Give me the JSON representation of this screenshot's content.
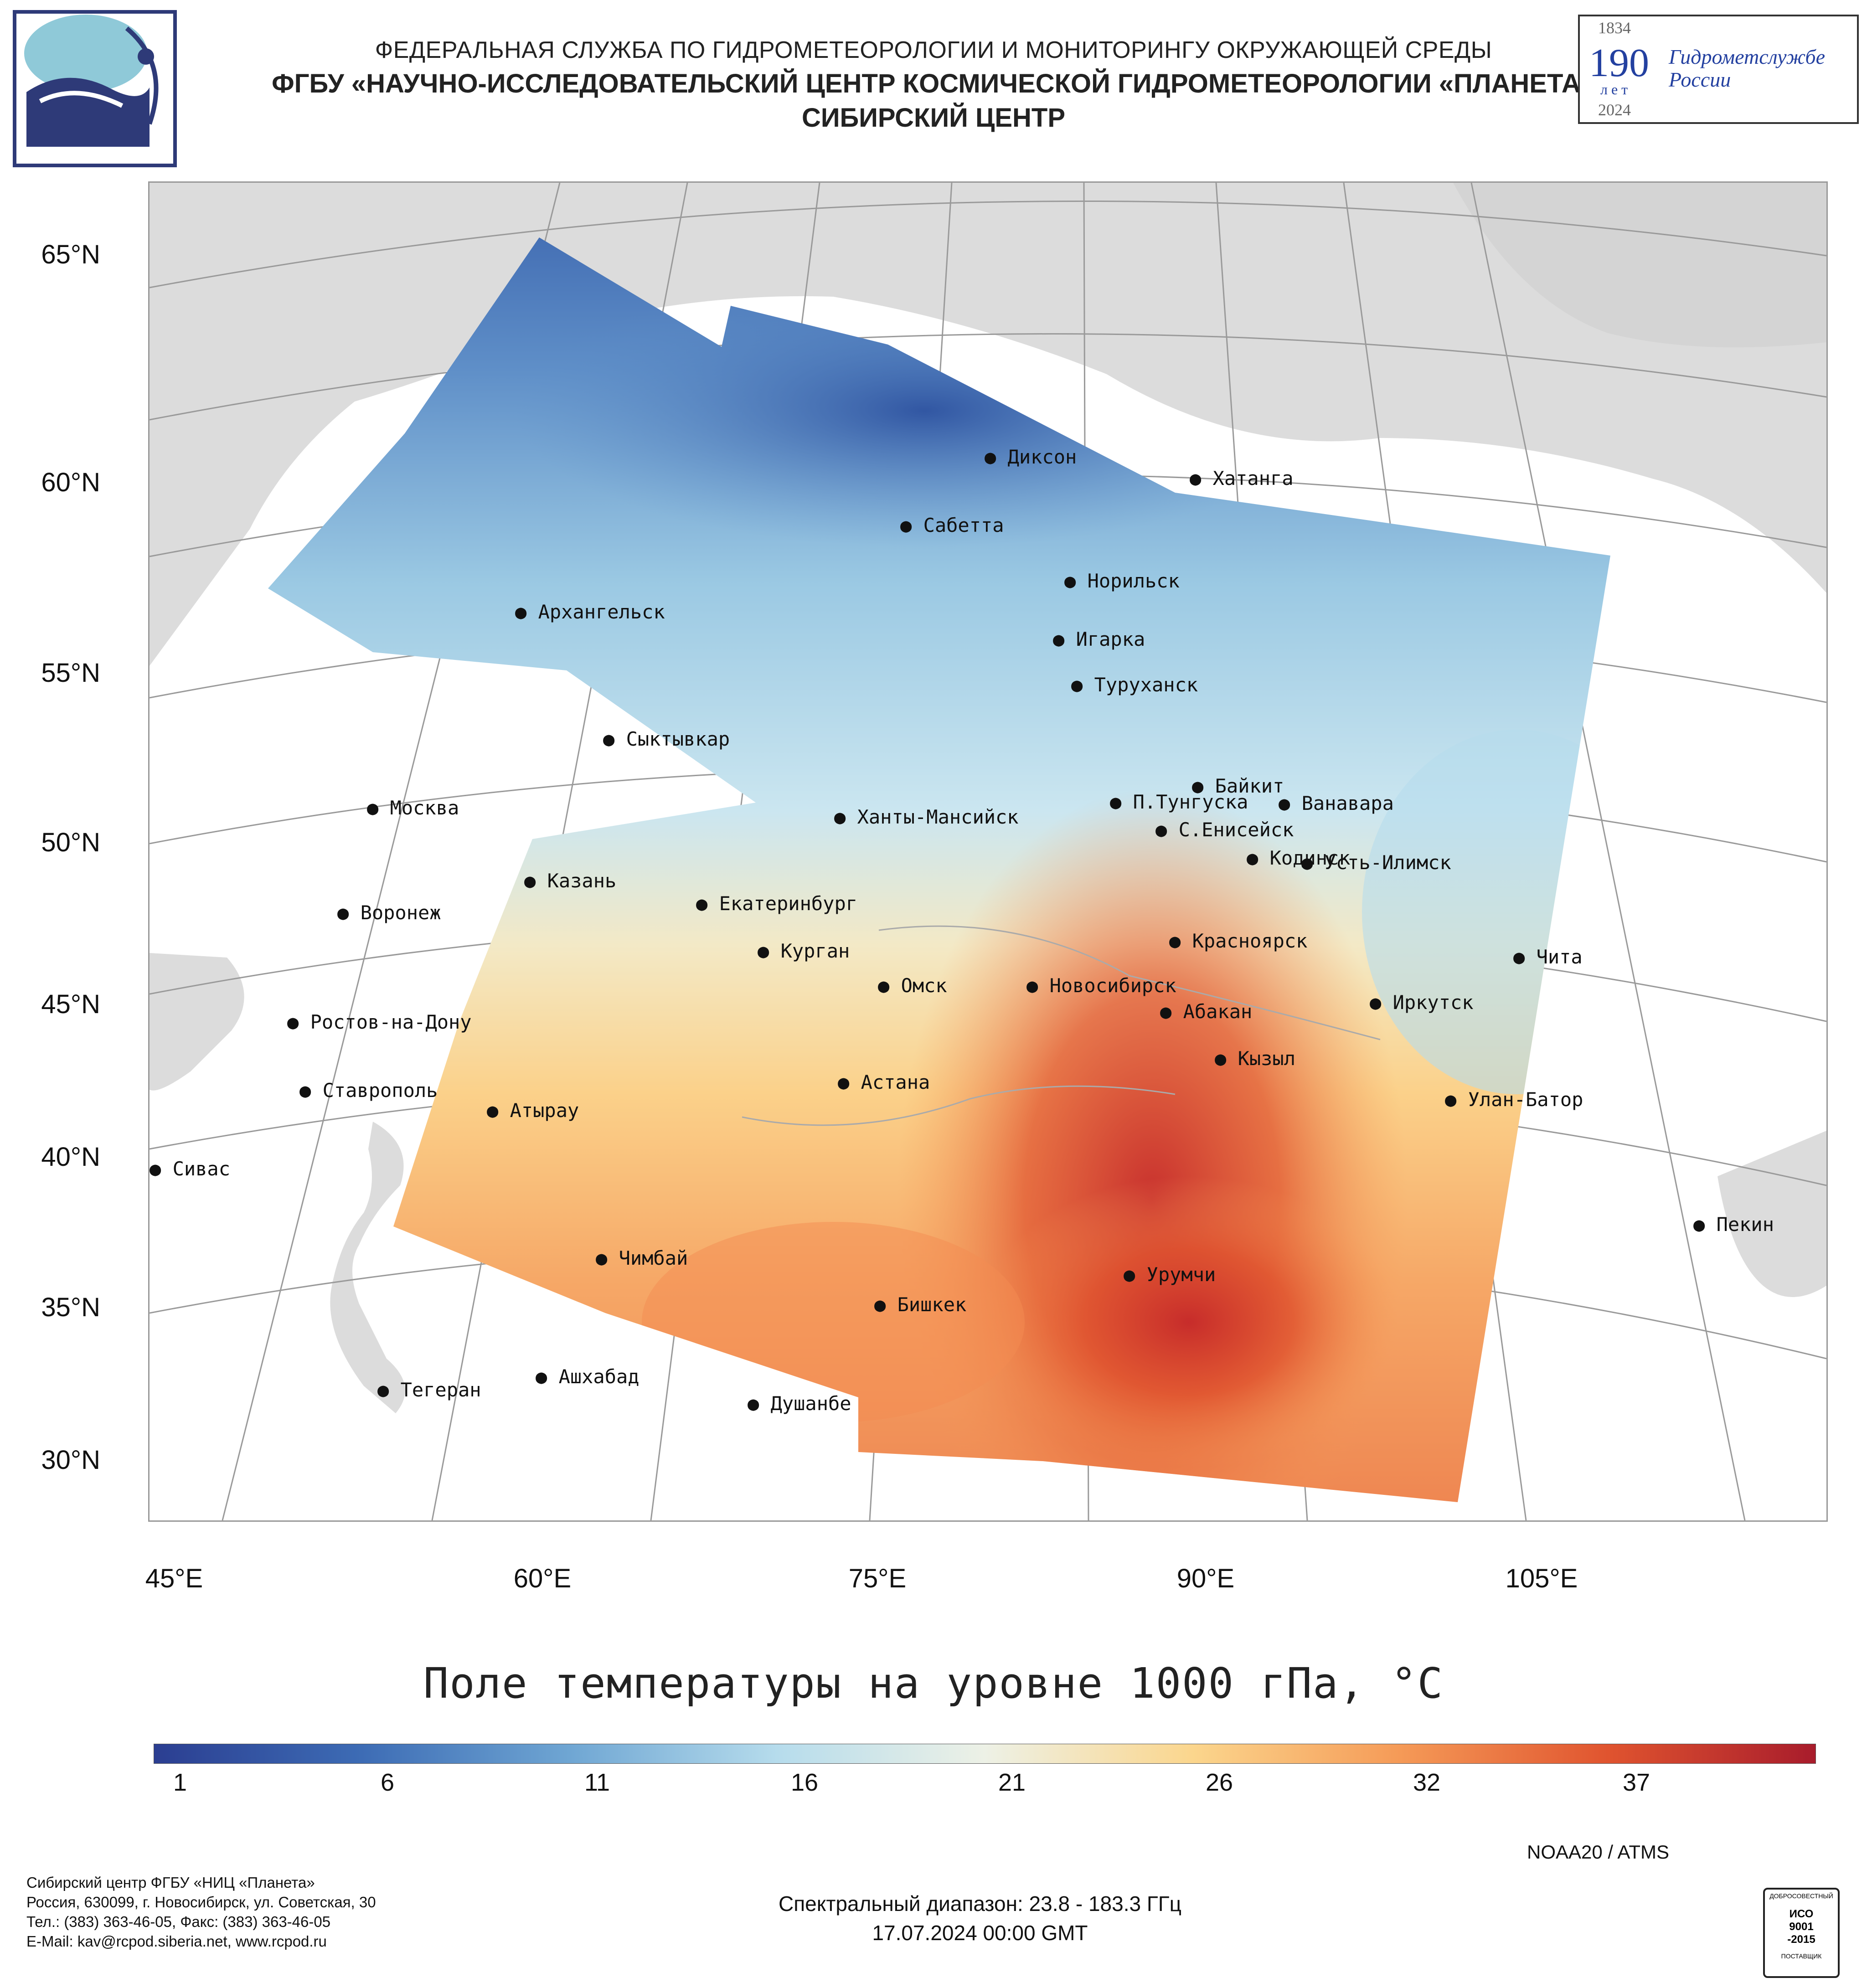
{
  "header": {
    "line1": "ФЕДЕРАЛЬНАЯ СЛУЖБА ПО ГИДРОМЕТЕОРОЛОГИИ И МОНИТОРИНГУ ОКРУЖАЮЩЕЙ СРЕДЫ",
    "line2": "ФГБУ «НАУЧНО-ИССЛЕДОВАТЕЛЬСКИЙ ЦЕНТР КОСМИЧЕСКОЙ ГИДРОМЕТЕОРОЛОГИИ «ПЛАНЕТА»",
    "line3": "СИБИРСКИЙ ЦЕНТР"
  },
  "anniversary_badge": {
    "year_start": "1834",
    "number": "190",
    "unit": "лет",
    "name_line1": "Гидрометслужбе",
    "name_line2": "России",
    "year_end": "2024"
  },
  "map": {
    "lat_labels": [
      "65°N",
      "60°N",
      "55°N",
      "50°N",
      "45°N",
      "40°N",
      "35°N",
      "30°N"
    ],
    "lon_labels": [
      "45°E",
      "60°E",
      "75°E",
      "90°E",
      "105°E"
    ],
    "cities": [
      {
        "id": "dikson",
        "name": "Диксон"
      },
      {
        "id": "khatanga",
        "name": "Хатанга"
      },
      {
        "id": "sabetta",
        "name": "Сабетта"
      },
      {
        "id": "norilsk",
        "name": "Норильск"
      },
      {
        "id": "arkhangelsk",
        "name": "Архангельск"
      },
      {
        "id": "igarka",
        "name": "Игарка"
      },
      {
        "id": "turukhansk",
        "name": "Туруханск"
      },
      {
        "id": "syktyvkar",
        "name": "Сыктывкар"
      },
      {
        "id": "baikit",
        "name": "Байкит"
      },
      {
        "id": "moskva",
        "name": "Москва"
      },
      {
        "id": "khanty",
        "name": "Ханты-Мансийск"
      },
      {
        "id": "ptunguska",
        "name": "П.Тунгуска"
      },
      {
        "id": "vanavara",
        "name": "Ванавара"
      },
      {
        "id": "seniseisk",
        "name": "С.Енисейск"
      },
      {
        "id": "kodinsk",
        "name": "Кодинск"
      },
      {
        "id": "ustilimsk",
        "name": "Усть-Илимск"
      },
      {
        "id": "kazan",
        "name": "Казань"
      },
      {
        "id": "ekaterinburg",
        "name": "Екатеринбург"
      },
      {
        "id": "voronezh",
        "name": "Воронеж"
      },
      {
        "id": "krasnoyarsk",
        "name": "Красноярск"
      },
      {
        "id": "kurgan",
        "name": "Курган"
      },
      {
        "id": "chita",
        "name": "Чита"
      },
      {
        "id": "omsk",
        "name": "Омск"
      },
      {
        "id": "novosibirsk",
        "name": "Новосибирск"
      },
      {
        "id": "irkutsk",
        "name": "Иркутск"
      },
      {
        "id": "abakan",
        "name": "Абакан"
      },
      {
        "id": "rostov",
        "name": "Ростов-на-Дону"
      },
      {
        "id": "kyzyl",
        "name": "Кызыл"
      },
      {
        "id": "astana",
        "name": "Астана"
      },
      {
        "id": "stavropol",
        "name": "Ставрополь"
      },
      {
        "id": "ulanbator",
        "name": "Улан-Батор"
      },
      {
        "id": "atyrau",
        "name": "Атырау"
      },
      {
        "id": "sivas",
        "name": "Сивас"
      },
      {
        "id": "pekin",
        "name": "Пекин"
      },
      {
        "id": "chimbai",
        "name": "Чимбай"
      },
      {
        "id": "urumchi",
        "name": "Урумчи"
      },
      {
        "id": "bishkek",
        "name": "Бишкек"
      },
      {
        "id": "ashkhabad",
        "name": "Ашхабад"
      },
      {
        "id": "tegeran",
        "name": "Тегеран"
      },
      {
        "id": "dushanbe",
        "name": "Душанбе"
      }
    ]
  },
  "legend": {
    "title": "Поле температуры на уровне 1000 гПа, °С",
    "ticks": [
      "1",
      "6",
      "11",
      "16",
      "21",
      "26",
      "32",
      "37"
    ],
    "colors": [
      "#2b3e91",
      "#3d6cb5",
      "#6fa6d3",
      "#b6dcec",
      "#edf1e6",
      "#fbd68d",
      "#f59a57",
      "#e0542f",
      "#a81c2c"
    ]
  },
  "footer": {
    "org_line1": "Сибирский центр ФГБУ «НИЦ «Планета»",
    "org_line2": "Россия, 630099, г. Новосибирск, ул. Советская, 30",
    "org_line3": "Тел.: (383) 363-46-05, Факс: (383) 363-46-05",
    "org_line4": "E-Mail: kav@rcpod.siberia.net, www.rcpod.ru",
    "satellite": "NOAA20 / ATMS",
    "spectral": "Спектральный диапазон: 23.8 - 183.3 ГГц",
    "datetime": "17.07.2024 00:00 GMT",
    "iso_badge_top": "ДОБРОСОВЕСТНЫЙ",
    "iso_badge_mid1": "ИСО",
    "iso_badge_mid2": "9001",
    "iso_badge_mid3": "-2015",
    "iso_badge_bottom": "ПОСТАВЩИК"
  }
}
